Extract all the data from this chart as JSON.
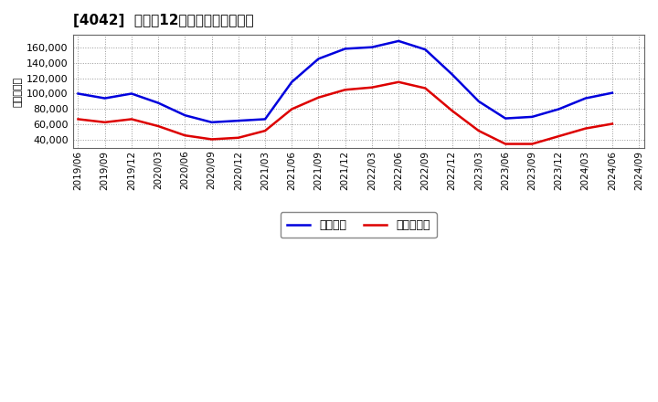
{
  "title": "[4042]  利益だ12か月移動合計の推移",
  "ylabel": "（百万円）",
  "background_color": "#ffffff",
  "plot_background": "#ffffff",
  "grid_color": "#999999",
  "x_labels": [
    "2019/06",
    "2019/09",
    "2019/12",
    "2020/03",
    "2020/06",
    "2020/09",
    "2020/12",
    "2021/03",
    "2021/06",
    "2021/09",
    "2021/12",
    "2022/03",
    "2022/06",
    "2022/09",
    "2022/12",
    "2023/03",
    "2023/06",
    "2023/09",
    "2023/12",
    "2024/03",
    "2024/06",
    "2024/09"
  ],
  "keijo_rieki": [
    100000,
    94000,
    100000,
    88000,
    72000,
    63000,
    65000,
    67000,
    115000,
    145000,
    158000,
    160000,
    168000,
    157000,
    125000,
    90000,
    68000,
    70000,
    80000,
    94000,
    101000,
    null
  ],
  "junrieki": [
    67000,
    63000,
    67000,
    58000,
    46000,
    41000,
    43000,
    52000,
    80000,
    95000,
    105000,
    108000,
    115000,
    107000,
    78000,
    52000,
    35000,
    35000,
    45000,
    55000,
    61000,
    null
  ],
  "keijo_color": "#0000dd",
  "junrieki_color": "#dd0000",
  "keijo_label": "経常利益",
  "junrieki_label": "当期純利益",
  "ylim_min": 30000,
  "ylim_max": 176000,
  "yticks": [
    40000,
    60000,
    80000,
    100000,
    120000,
    140000,
    160000
  ],
  "line_width": 1.8
}
